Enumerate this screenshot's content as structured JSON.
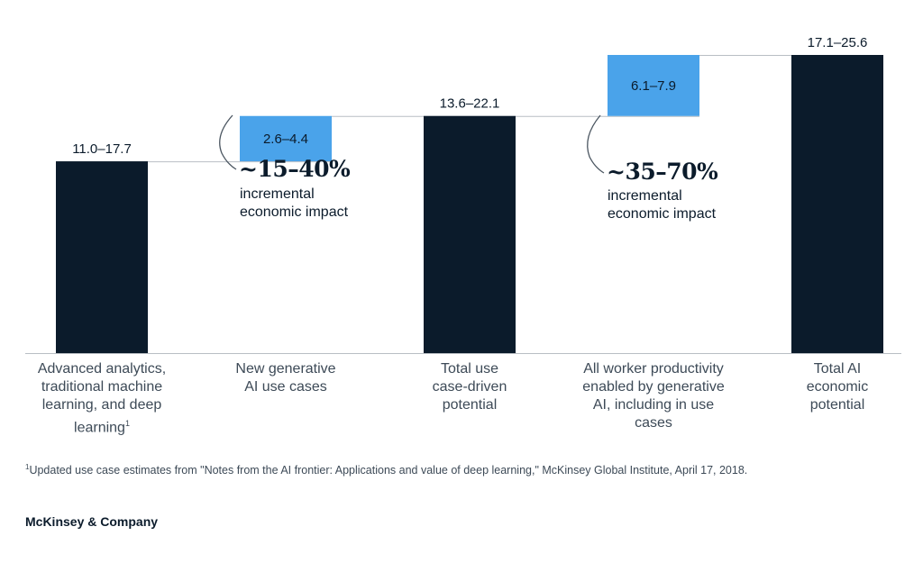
{
  "chart_data": {
    "type": "waterfall-bar",
    "categories": [
      "Advanced analytics, traditional machine learning, and deep learning",
      "New generative AI use cases",
      "Total use case-driven potential",
      "All worker productivity enabled by generative AI, including in use cases",
      "Total AI economic potential"
    ],
    "bars": [
      {
        "kind": "total",
        "low": 11.0,
        "high": 17.7,
        "label": "11.0–17.7",
        "base": 0,
        "top": 11.0
      },
      {
        "kind": "increment",
        "low": 2.6,
        "high": 4.4,
        "label": "2.6–4.4",
        "base": 11.0,
        "top": 13.6
      },
      {
        "kind": "total",
        "low": 13.6,
        "high": 22.1,
        "label": "13.6–22.1",
        "base": 0,
        "top": 13.6
      },
      {
        "kind": "increment",
        "low": 6.1,
        "high": 7.9,
        "label": "6.1–7.9",
        "base": 13.6,
        "top": 17.1
      },
      {
        "kind": "total",
        "low": 17.1,
        "high": 25.6,
        "label": "17.1–25.6",
        "base": 0,
        "top": 17.1
      }
    ],
    "ylim": [
      0,
      17.1
    ],
    "grid": false,
    "colors": {
      "total": "#0b1b2b",
      "increment": "#4aa3ea",
      "connector": "#b9bec4",
      "axis": "#b9bec4"
    }
  },
  "category_lines": [
    [
      "Advanced analytics,",
      "traditional machine",
      "learning, and deep",
      "learning"
    ],
    [
      "New generative",
      "AI use cases"
    ],
    [
      "Total use",
      "case-driven",
      "potential"
    ],
    [
      "All worker productivity",
      "enabled by generative",
      "AI, including in use",
      "cases"
    ],
    [
      "Total AI",
      "economic",
      "potential"
    ]
  ],
  "footnote_marker": "1",
  "annotations": [
    {
      "pct": "~15–40%",
      "line1": "incremental",
      "line2": "economic impact"
    },
    {
      "pct": "~35–70%",
      "line1": "incremental",
      "line2": "economic impact"
    }
  ],
  "footnote": {
    "marker": "1",
    "text": "Updated use case estimates from \"Notes from the AI frontier: Applications and value of deep learning,\" McKinsey Global Institute, April 17, 2018."
  },
  "brand": "McKinsey & Company"
}
